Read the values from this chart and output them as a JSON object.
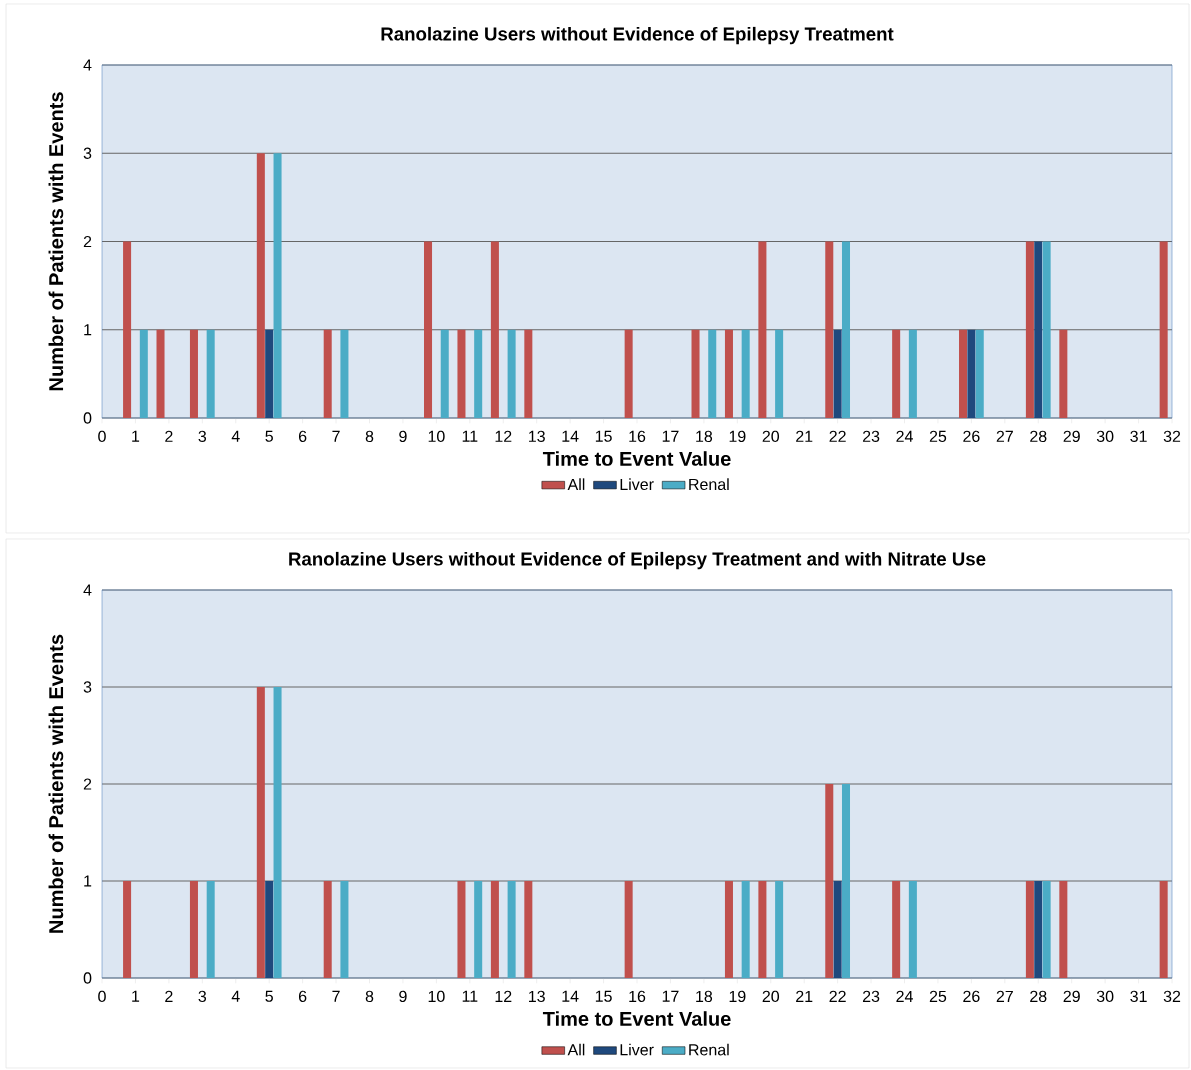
{
  "chart_data": [
    {
      "type": "bar",
      "title": "Ranolazine Users without Evidence of Epilepsy Treatment",
      "xlabel": "Time to Event Value",
      "ylabel": "Number of Patients with Events",
      "x": [
        1,
        2,
        3,
        5,
        7,
        10,
        11,
        12,
        13,
        16,
        18,
        19,
        20,
        22,
        24,
        26,
        28,
        29,
        32
      ],
      "series": [
        {
          "name": "All",
          "color": "#c0504d",
          "values": [
            2,
            1,
            1,
            3,
            1,
            2,
            1,
            2,
            1,
            1,
            1,
            1,
            2,
            2,
            1,
            1,
            2,
            1,
            2
          ]
        },
        {
          "name": "Liver",
          "color": "#1f497d",
          "values": [
            null,
            null,
            null,
            1,
            null,
            null,
            null,
            null,
            null,
            null,
            null,
            null,
            null,
            1,
            null,
            1,
            2,
            null,
            null
          ]
        },
        {
          "name": "Renal",
          "color": "#4bacc6",
          "values": [
            1,
            null,
            1,
            3,
            1,
            1,
            1,
            1,
            null,
            null,
            1,
            1,
            1,
            2,
            1,
            1,
            2,
            null,
            null
          ]
        }
      ],
      "xlim": [
        0,
        32
      ],
      "xticks": [
        0,
        1,
        2,
        3,
        4,
        5,
        6,
        7,
        8,
        9,
        10,
        11,
        12,
        13,
        14,
        15,
        16,
        17,
        18,
        19,
        20,
        21,
        22,
        23,
        24,
        25,
        26,
        27,
        28,
        29,
        30,
        31,
        32
      ],
      "ylim": [
        0,
        4
      ],
      "yticks": [
        0,
        1,
        2,
        3,
        4
      ],
      "grid": "y",
      "legend": "bottom"
    },
    {
      "type": "bar",
      "title": "Ranolazine Users without Evidence of Epilepsy Treatment and with Nitrate Use",
      "xlabel": "Time to Event Value",
      "ylabel": "Number of Patients with Events",
      "x": [
        1,
        3,
        5,
        7,
        11,
        12,
        13,
        16,
        19,
        20,
        22,
        24,
        28,
        29,
        32
      ],
      "series": [
        {
          "name": "All",
          "color": "#c0504d",
          "values": [
            1,
            1,
            3,
            1,
            1,
            1,
            1,
            1,
            1,
            1,
            2,
            1,
            1,
            1,
            1
          ]
        },
        {
          "name": "Liver",
          "color": "#1f497d",
          "values": [
            null,
            null,
            1,
            null,
            null,
            null,
            null,
            null,
            null,
            null,
            1,
            null,
            1,
            null,
            null
          ]
        },
        {
          "name": "Renal",
          "color": "#4bacc6",
          "values": [
            null,
            1,
            3,
            1,
            1,
            1,
            null,
            null,
            1,
            1,
            2,
            1,
            1,
            null,
            null
          ]
        }
      ],
      "xlim": [
        0,
        32
      ],
      "xticks": [
        0,
        1,
        2,
        3,
        4,
        5,
        6,
        7,
        8,
        9,
        10,
        11,
        12,
        13,
        14,
        15,
        16,
        17,
        18,
        19,
        20,
        21,
        22,
        23,
        24,
        25,
        26,
        27,
        28,
        29,
        30,
        31,
        32
      ],
      "ylim": [
        0,
        4
      ],
      "yticks": [
        0,
        1,
        2,
        3,
        4
      ],
      "grid": "y",
      "legend": "bottom"
    }
  ]
}
